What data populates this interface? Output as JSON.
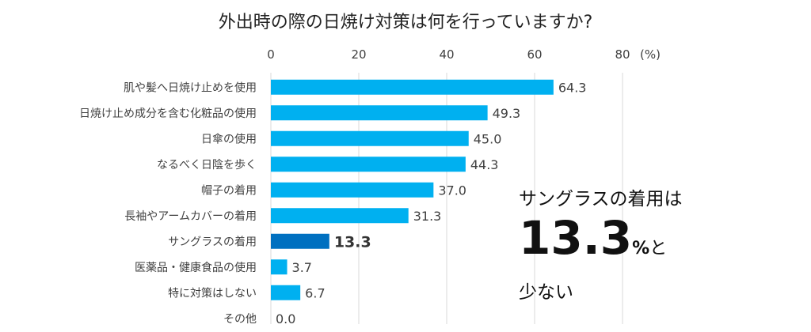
{
  "chart_data": {
    "type": "bar",
    "orientation": "horizontal",
    "title": "外出時の際の日焼け対策は何を行っていますか?",
    "unit_label": "(%)",
    "xlim": [
      0,
      80
    ],
    "ticks": [
      0,
      20,
      40,
      60,
      80
    ],
    "grid": true,
    "categories": [
      "肌や髪へ日焼け止めを使用",
      "日焼け止め成分を含む化粧品の使用",
      "日傘の使用",
      "なるべく日陰を歩く",
      "帽子の着用",
      "長袖やアームカバーの着用",
      "サングラスの着用",
      "医薬品・健康食品の使用",
      "特に対策はしない",
      "その他"
    ],
    "values": [
      64.3,
      49.3,
      45.0,
      44.3,
      37.0,
      31.3,
      13.3,
      3.7,
      6.7,
      0.0
    ],
    "value_labels": [
      "64.3",
      "49.3",
      "45.0",
      "44.3",
      "37.0",
      "31.3",
      "13.3",
      "3.7",
      "6.7",
      "0.0"
    ],
    "highlight_index": 6,
    "colors": {
      "bar": "#00B0F0",
      "highlight": "#0070C0",
      "grid": "#D9D9D9",
      "text": "#404040"
    }
  },
  "callout": {
    "line1": "サングラスの着用は",
    "number": "13.3",
    "unit": "%",
    "suffix": "と",
    "line3": "少ない"
  }
}
